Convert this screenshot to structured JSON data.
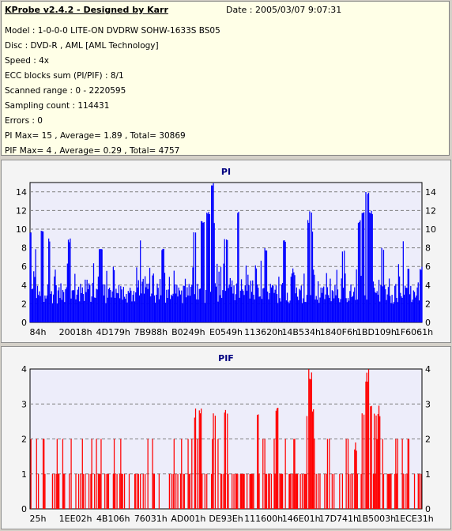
{
  "info": {
    "app_title": "KProbe v2.4.2 - Designed by Karr",
    "date": "Date : 2005/03/07 9:07:31",
    "lines": [
      "Model : 1-0-0-0 LITE-ON DVDRW SOHW-1633S BS05",
      "Disc : DVD-R , AML [AML Technology]",
      "Speed : 4x",
      "ECC blocks sum (PI/PIF) : 8/1",
      "Scanned range : 0 - 2220595",
      "Sampling count : 114431",
      "Errors : 0",
      "PI Max= 15 , Average= 1.89 , Total= 30869",
      "PIF Max= 4 , Average= 0.29 , Total= 4757"
    ]
  },
  "chart_data": [
    {
      "type": "bar",
      "title": "PI",
      "color": "#0000ff",
      "ylim": [
        0,
        15
      ],
      "yticks": [
        0,
        2,
        4,
        6,
        8,
        10,
        12,
        14
      ],
      "xticklabels": [
        "84h",
        "20018h",
        "4D179h",
        "7B988h",
        "B0249h",
        "E0549h",
        "113620h",
        "14B534h",
        "1840F6h",
        "1BD109h",
        "1F6061h"
      ],
      "grid": true,
      "peaks": [
        [
          0.0,
          10
        ],
        [
          0.015,
          8
        ],
        [
          0.03,
          10
        ],
        [
          0.05,
          9
        ],
        [
          0.1,
          9
        ],
        [
          0.18,
          8
        ],
        [
          0.28,
          9
        ],
        [
          0.34,
          8
        ],
        [
          0.42,
          10
        ],
        [
          0.44,
          11
        ],
        [
          0.455,
          12
        ],
        [
          0.465,
          15
        ],
        [
          0.47,
          11
        ],
        [
          0.5,
          9
        ],
        [
          0.53,
          12
        ],
        [
          0.6,
          8
        ],
        [
          0.65,
          9
        ],
        [
          0.71,
          11
        ],
        [
          0.715,
          12
        ],
        [
          0.72,
          10
        ],
        [
          0.8,
          8
        ],
        [
          0.84,
          11
        ],
        [
          0.85,
          12
        ],
        [
          0.86,
          14
        ],
        [
          0.87,
          12
        ],
        [
          0.9,
          8
        ],
        [
          0.95,
          9
        ],
        [
          1.0,
          6
        ]
      ]
    },
    {
      "type": "bar",
      "title": "PIF",
      "color": "#ff0000",
      "ylim": [
        0,
        4
      ],
      "yticks": [
        0,
        1,
        2,
        3,
        4
      ],
      "xticklabels": [
        "25h",
        "1EE02h",
        "4B106h",
        "76031h",
        "AD001h",
        "DE93Eh",
        "111600h",
        "146E01h",
        "17D741h",
        "1B5003h",
        "1ECE31h"
      ],
      "grid": true,
      "peaks": [
        [
          0.42,
          3
        ],
        [
          0.435,
          3
        ],
        [
          0.47,
          3
        ],
        [
          0.5,
          3
        ],
        [
          0.58,
          3
        ],
        [
          0.63,
          3
        ],
        [
          0.71,
          3
        ],
        [
          0.715,
          4
        ],
        [
          0.72,
          3
        ],
        [
          0.83,
          2
        ],
        [
          0.85,
          3
        ],
        [
          0.86,
          4
        ],
        [
          0.87,
          3
        ],
        [
          0.88,
          3
        ],
        [
          0.89,
          3
        ]
      ]
    }
  ]
}
